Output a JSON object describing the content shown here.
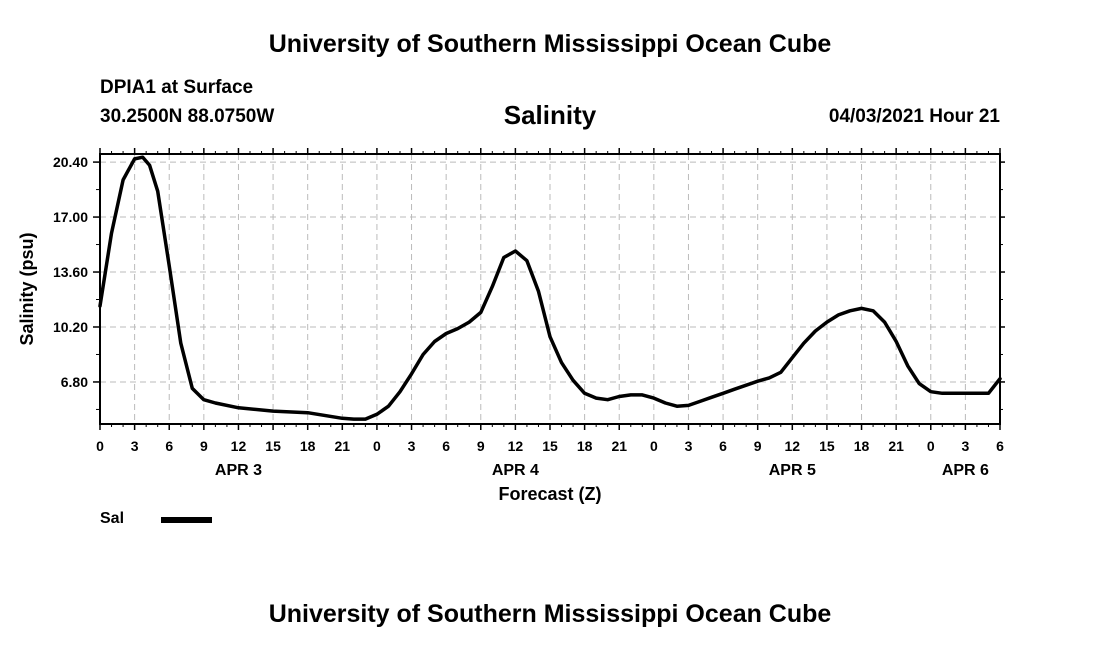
{
  "header": {
    "title": "University of Southern Mississippi Ocean Cube",
    "station": "DPIA1 at Surface",
    "coordinates": "30.2500N  88.0750W",
    "variable": "Salinity",
    "datetime": "04/03/2021 Hour 21"
  },
  "footer": {
    "title": "University of Southern Mississippi Ocean Cube"
  },
  "legend": {
    "label": "Sal"
  },
  "chart_data": {
    "type": "line",
    "title": "Salinity",
    "xlabel": "Forecast (Z)",
    "ylabel": "Salinity (psu)",
    "xlim": [
      0,
      78
    ],
    "ylim": [
      4.2,
      20.9
    ],
    "y_ticks": [
      6.8,
      10.2,
      13.6,
      17.0,
      20.4
    ],
    "y_tick_labels": [
      "6.80",
      "10.20",
      "13.60",
      "17.00",
      "20.40"
    ],
    "x_ticks": [
      0,
      3,
      6,
      9,
      12,
      15,
      18,
      21,
      24,
      27,
      30,
      33,
      36,
      39,
      42,
      45,
      48,
      51,
      54,
      57,
      60,
      63,
      66,
      69,
      72,
      75,
      78
    ],
    "x_tick_labels": [
      "0",
      "3",
      "6",
      "9",
      "12",
      "15",
      "18",
      "21",
      "0",
      "3",
      "6",
      "9",
      "12",
      "15",
      "18",
      "21",
      "0",
      "3",
      "6",
      "9",
      "12",
      "15",
      "18",
      "21",
      "0",
      "3",
      "6"
    ],
    "date_labels": [
      {
        "hour": 12,
        "label": "APR 3"
      },
      {
        "hour": 36,
        "label": "APR 4"
      },
      {
        "hour": 60,
        "label": "APR 5"
      },
      {
        "hour": 75,
        "label": "APR 6"
      }
    ],
    "grid": true,
    "series": [
      {
        "name": "Sal",
        "color": "#000000",
        "x": [
          0,
          1,
          2,
          3,
          3.7,
          4.3,
          5,
          6,
          7,
          8,
          9,
          10,
          12,
          15,
          18,
          21,
          22,
          23,
          24,
          25,
          26,
          27,
          28,
          29,
          30,
          31,
          32,
          33,
          34,
          35,
          36,
          37,
          38,
          39,
          40,
          41,
          42,
          43,
          44,
          45,
          46,
          47,
          48,
          49,
          50,
          51,
          52,
          53,
          54,
          55,
          56,
          57,
          58,
          59,
          60,
          61,
          62,
          63,
          64,
          65,
          66,
          67,
          68,
          69,
          70,
          71,
          72,
          73,
          74,
          75,
          76,
          77,
          78
        ],
        "y": [
          11.5,
          16.0,
          19.3,
          20.6,
          20.7,
          20.2,
          18.6,
          14.0,
          9.2,
          6.4,
          5.7,
          5.5,
          5.2,
          5.0,
          4.9,
          4.55,
          4.5,
          4.5,
          4.8,
          5.3,
          6.2,
          7.3,
          8.5,
          9.3,
          9.8,
          10.1,
          10.5,
          11.1,
          12.7,
          14.5,
          14.9,
          14.3,
          12.4,
          9.6,
          8.0,
          6.9,
          6.1,
          5.8,
          5.7,
          5.9,
          6.0,
          6.0,
          5.8,
          5.5,
          5.3,
          5.35,
          5.6,
          5.85,
          6.1,
          6.35,
          6.6,
          6.85,
          7.05,
          7.4,
          8.3,
          9.2,
          9.95,
          10.5,
          10.95,
          11.2,
          11.35,
          11.2,
          10.5,
          9.3,
          7.8,
          6.7,
          6.2,
          6.1,
          6.1,
          6.1,
          6.1,
          6.1,
          7.0
        ]
      }
    ]
  }
}
